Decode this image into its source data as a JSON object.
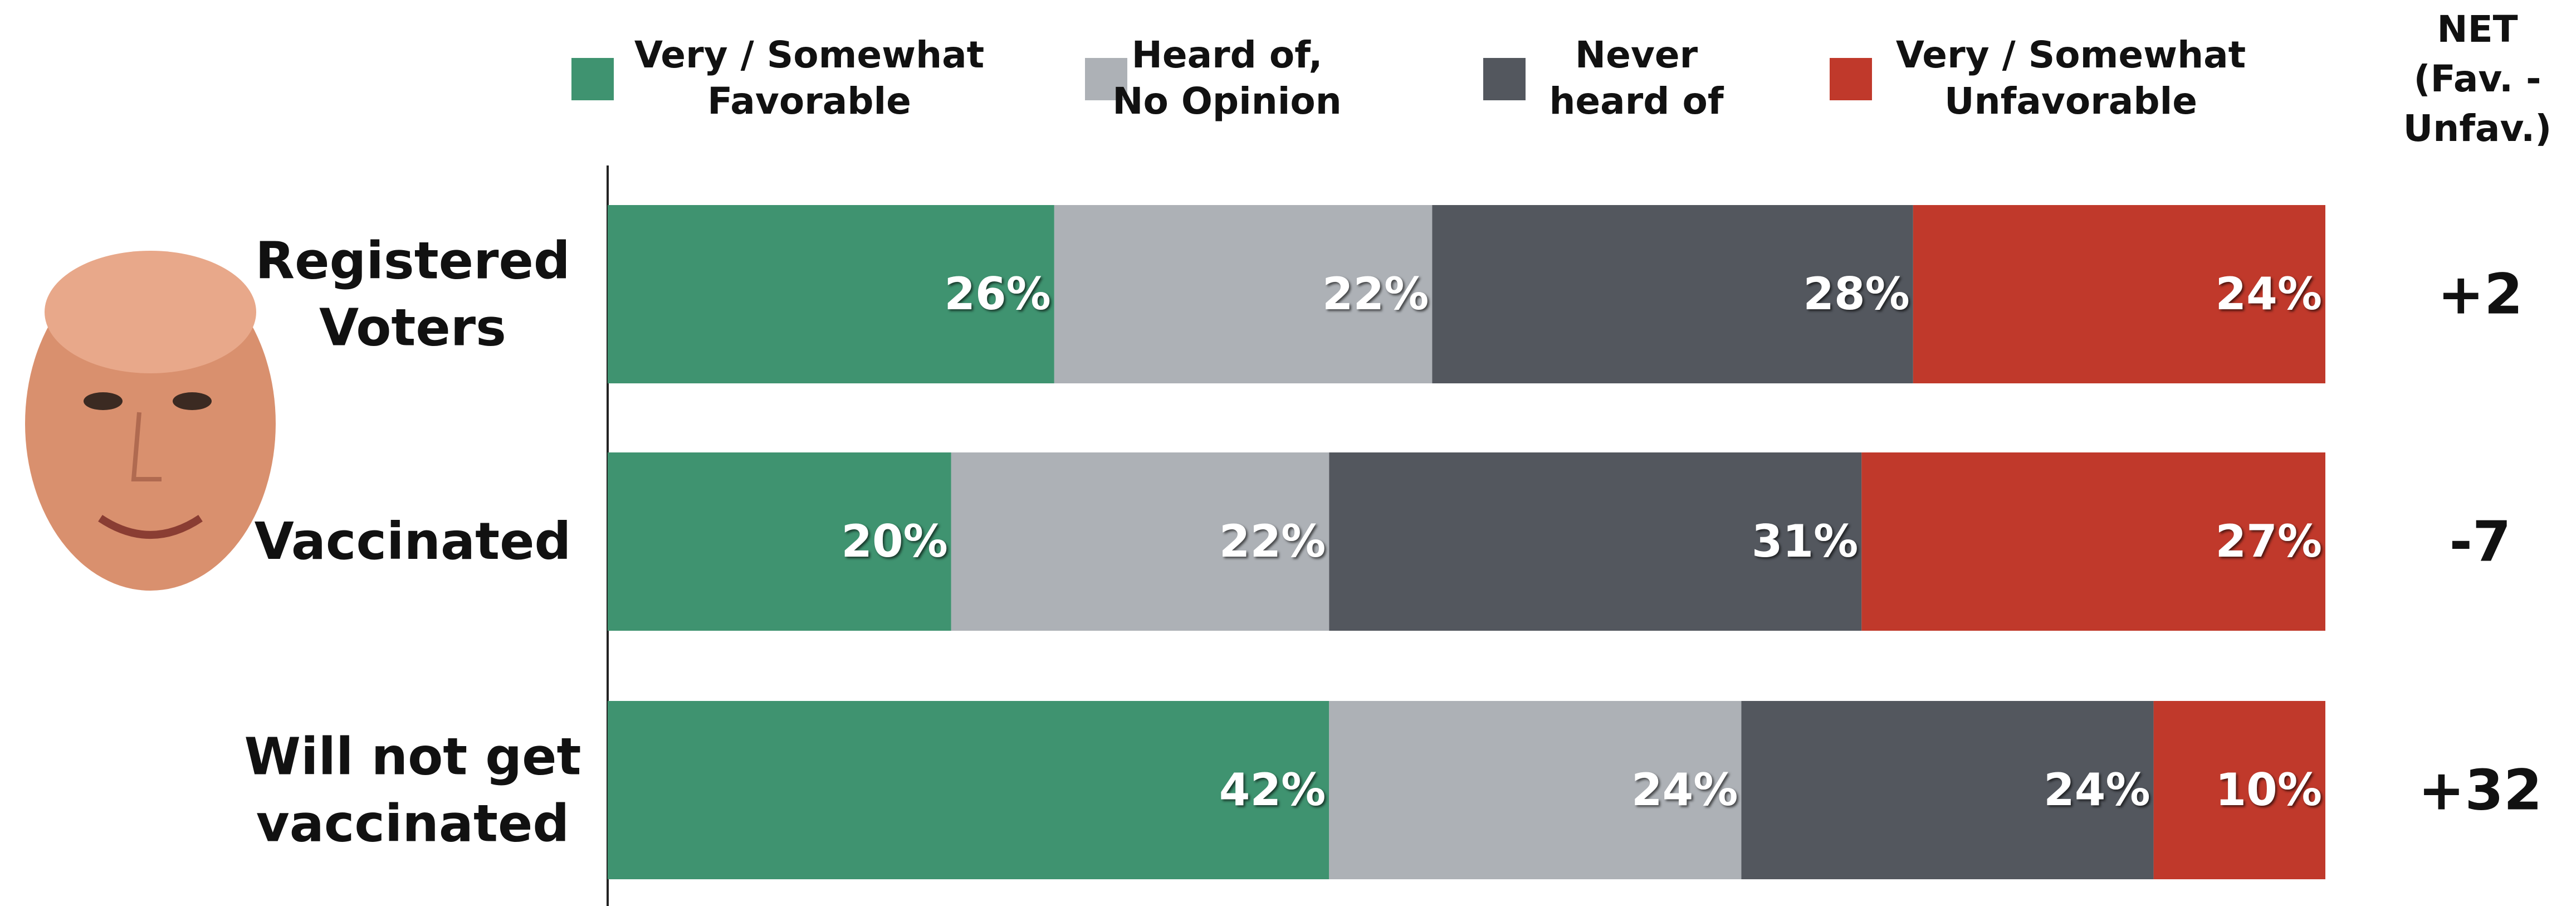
{
  "chart_data": {
    "type": "stacked-bar",
    "categories": [
      "Registered\nVoters",
      "Vaccinated",
      "Will not get\nvaccinated"
    ],
    "series": [
      {
        "name": "Very / Somewhat\nFavorable",
        "color": "#3f9370",
        "values": [
          26,
          20,
          42
        ],
        "value_labels": [
          "26%",
          "20%",
          "42%"
        ]
      },
      {
        "name": "Heard of,\nNo Opinion",
        "color": "#adb1b6",
        "values": [
          22,
          22,
          24
        ],
        "value_labels": [
          "22%",
          "22%",
          "24%"
        ]
      },
      {
        "name": "Never\nheard of",
        "color": "#53575e",
        "values": [
          28,
          31,
          24
        ],
        "value_labels": [
          "28%",
          "31%",
          "24%"
        ]
      },
      {
        "name": "Very / Somewhat\nUnfavorable",
        "color": "#c0392b",
        "values": [
          24,
          27,
          10
        ],
        "value_labels": [
          "24%",
          "27%",
          "10%"
        ]
      }
    ],
    "xlim": [
      0,
      100
    ],
    "net": {
      "title": "NET\n(Fav. -\nUnfav.)",
      "values": [
        2,
        -7,
        32
      ],
      "value_labels": [
        "+2",
        "-7",
        "+32"
      ]
    }
  }
}
